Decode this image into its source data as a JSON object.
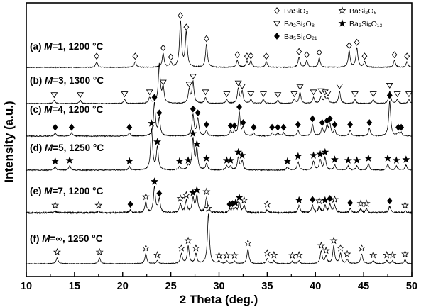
{
  "chart_data": {
    "type": "line",
    "xlabel": "2 Theta (deg.)",
    "ylabel": "Intensity (a.u.)",
    "xlim": [
      10,
      50
    ],
    "x_ticks": [
      "10",
      "15",
      "20",
      "25",
      "30",
      "35",
      "40",
      "45",
      "50"
    ],
    "grid": false,
    "legend": {
      "placement": "top-right",
      "entries": [
        {
          "label": "BaSiO₃",
          "marker": "diamond-open"
        },
        {
          "label": "BaSi₂O₅",
          "marker": "star-open"
        },
        {
          "label": "Ba₂Si₃O₈",
          "marker": "triangle-open"
        },
        {
          "label": "Ba₃Si₅O₁₃",
          "marker": "star-filled"
        },
        {
          "label": "Ba₅Si₈O₂₁",
          "marker": "diamond-filled"
        }
      ]
    },
    "series": [
      {
        "label": "(a) M=1, 1200 °C",
        "peaks": [
          {
            "x": 17.3,
            "h": 0.12,
            "m": "diamond-open"
          },
          {
            "x": 21.3,
            "h": 0.12,
            "m": "diamond-open"
          },
          {
            "x": 24.2,
            "h": 0.3,
            "m": "diamond-open"
          },
          {
            "x": 25.0,
            "h": 0.1,
            "m": "diamond-open"
          },
          {
            "x": 26.0,
            "h": 1.0,
            "m": "diamond-open"
          },
          {
            "x": 26.6,
            "h": 0.75,
            "m": "diamond-open"
          },
          {
            "x": 28.7,
            "h": 0.5,
            "m": "diamond-open"
          },
          {
            "x": 31.9,
            "h": 0.15,
            "m": "diamond-open"
          },
          {
            "x": 32.9,
            "h": 0.12,
            "m": "diamond-open"
          },
          {
            "x": 33.3,
            "h": 0.13,
            "m": "diamond-open"
          },
          {
            "x": 34.9,
            "h": 0.12,
            "m": "diamond-open"
          },
          {
            "x": 38.3,
            "h": 0.22,
            "m": "diamond-open"
          },
          {
            "x": 39.1,
            "h": 0.15,
            "m": "diamond-open"
          },
          {
            "x": 40.4,
            "h": 0.2,
            "m": "diamond-open"
          },
          {
            "x": 43.5,
            "h": 0.35,
            "m": "diamond-open"
          },
          {
            "x": 44.3,
            "h": 0.42,
            "m": "diamond-open"
          },
          {
            "x": 45.1,
            "h": 0.12,
            "m": "diamond-open"
          },
          {
            "x": 48.2,
            "h": 0.15,
            "m": "diamond-open"
          },
          {
            "x": 49.5,
            "h": 0.12,
            "m": "diamond-open"
          }
        ]
      },
      {
        "label": "(b) M=3, 1300 °C",
        "peaks": [
          {
            "x": 12.9,
            "h": 0.08,
            "m": "triangle-open"
          },
          {
            "x": 15.6,
            "h": 0.08,
            "m": "triangle-open"
          },
          {
            "x": 20.2,
            "h": 0.1,
            "m": "triangle-open"
          },
          {
            "x": 22.8,
            "h": 0.15,
            "m": "triangle-open"
          },
          {
            "x": 23.8,
            "h": 1.0,
            "m": ""
          },
          {
            "x": 24.2,
            "h": 0.4,
            "m": "triangle-open"
          },
          {
            "x": 26.9,
            "h": 0.35,
            "m": "triangle-open"
          },
          {
            "x": 27.3,
            "h": 0.55,
            "m": "triangle-open"
          },
          {
            "x": 28.6,
            "h": 0.15,
            "m": "triangle-open"
          },
          {
            "x": 30.8,
            "h": 0.1,
            "m": "triangle-open"
          },
          {
            "x": 32.0,
            "h": 0.38,
            "m": "triangle-open"
          },
          {
            "x": 32.4,
            "h": 0.3,
            "m": "triangle-open"
          },
          {
            "x": 33.3,
            "h": 0.1,
            "m": "triangle-open"
          },
          {
            "x": 34.6,
            "h": 0.1,
            "m": "triangle-open"
          },
          {
            "x": 36.1,
            "h": 0.08,
            "m": "triangle-open"
          },
          {
            "x": 37.8,
            "h": 0.1,
            "m": "triangle-open"
          },
          {
            "x": 38.4,
            "h": 0.28,
            "m": "triangle-open"
          },
          {
            "x": 39.8,
            "h": 0.15,
            "m": "triangle-open"
          },
          {
            "x": 40.6,
            "h": 0.18,
            "m": "triangle-open"
          },
          {
            "x": 41.0,
            "h": 0.15,
            "m": "triangle-open"
          },
          {
            "x": 41.3,
            "h": 0.12,
            "m": "triangle-open"
          },
          {
            "x": 42.5,
            "h": 0.3,
            "m": "triangle-open"
          },
          {
            "x": 44.1,
            "h": 0.1,
            "m": "triangle-open"
          },
          {
            "x": 46.0,
            "h": 0.1,
            "m": "triangle-open"
          },
          {
            "x": 47.7,
            "h": 0.32,
            "m": "triangle-open"
          },
          {
            "x": 48.5,
            "h": 0.1,
            "m": "triangle-open"
          },
          {
            "x": 49.7,
            "h": 0.1,
            "m": "triangle-open"
          }
        ]
      },
      {
        "label": "(c) M=4, 1200 °C",
        "peaks": [
          {
            "x": 13.0,
            "h": 0.08,
            "m": "diamond-filled"
          },
          {
            "x": 14.7,
            "h": 0.08,
            "m": "diamond-filled"
          },
          {
            "x": 20.7,
            "h": 0.08,
            "m": "diamond-filled"
          },
          {
            "x": 23.3,
            "h": 0.85,
            "m": "diamond-filled"
          },
          {
            "x": 23.8,
            "h": 0.45,
            "m": "diamond-filled"
          },
          {
            "x": 27.3,
            "h": 0.55,
            "m": "diamond-filled"
          },
          {
            "x": 27.8,
            "h": 0.45,
            "m": "diamond-filled"
          },
          {
            "x": 28.7,
            "h": 0.15,
            "m": "diamond-filled"
          },
          {
            "x": 31.2,
            "h": 0.12,
            "m": "diamond-filled"
          },
          {
            "x": 31.6,
            "h": 0.12,
            "m": "diamond-filled"
          },
          {
            "x": 32.1,
            "h": 0.6,
            "m": "diamond-filled"
          },
          {
            "x": 32.5,
            "h": 0.2,
            "m": "diamond-filled"
          },
          {
            "x": 33.6,
            "h": 0.08,
            "m": "diamond-filled"
          },
          {
            "x": 35.5,
            "h": 0.08,
            "m": "diamond-filled"
          },
          {
            "x": 36.1,
            "h": 0.08,
            "m": "diamond-filled"
          },
          {
            "x": 36.7,
            "h": 0.08,
            "m": "diamond-filled"
          },
          {
            "x": 38.2,
            "h": 0.15,
            "m": "diamond-filled"
          },
          {
            "x": 39.7,
            "h": 0.3,
            "m": "diamond-filled"
          },
          {
            "x": 40.7,
            "h": 0.2,
            "m": "diamond-filled"
          },
          {
            "x": 41.2,
            "h": 0.25,
            "m": "diamond-filled"
          },
          {
            "x": 41.5,
            "h": 0.3,
            "m": "diamond-filled"
          },
          {
            "x": 42.0,
            "h": 0.15,
            "m": "diamond-filled"
          },
          {
            "x": 43.6,
            "h": 0.15,
            "m": "diamond-filled"
          },
          {
            "x": 45.6,
            "h": 0.2,
            "m": "diamond-filled"
          },
          {
            "x": 47.7,
            "h": 0.9,
            "m": "diamond-filled"
          },
          {
            "x": 48.6,
            "h": 0.08,
            "m": "diamond-filled"
          },
          {
            "x": 48.9,
            "h": 0.08,
            "m": "diamond-filled"
          }
        ]
      },
      {
        "label": "(d) M=5, 1250 °C",
        "peaks": [
          {
            "x": 13.0,
            "h": 0.08,
            "m": "star-filled"
          },
          {
            "x": 14.5,
            "h": 0.1,
            "m": "star-filled"
          },
          {
            "x": 20.7,
            "h": 0.08,
            "m": "star-filled"
          },
          {
            "x": 23.0,
            "h": 1.0,
            "m": "star-filled"
          },
          {
            "x": 23.6,
            "h": 0.55,
            "m": "star-filled"
          },
          {
            "x": 25.9,
            "h": 0.08,
            "m": "star-filled"
          },
          {
            "x": 26.8,
            "h": 0.1,
            "m": "star-filled"
          },
          {
            "x": 27.3,
            "h": 0.75,
            "m": "star-filled"
          },
          {
            "x": 27.7,
            "h": 0.5,
            "m": "star-filled"
          },
          {
            "x": 28.7,
            "h": 0.15,
            "m": "star-filled"
          },
          {
            "x": 30.8,
            "h": 0.1,
            "m": "star-filled"
          },
          {
            "x": 31.2,
            "h": 0.1,
            "m": "star-filled"
          },
          {
            "x": 32.0,
            "h": 0.3,
            "m": "star-filled"
          },
          {
            "x": 32.4,
            "h": 0.22,
            "m": "star-filled"
          },
          {
            "x": 37.1,
            "h": 0.08,
            "m": "star-filled"
          },
          {
            "x": 38.2,
            "h": 0.2,
            "m": "star-filled"
          },
          {
            "x": 39.8,
            "h": 0.22,
            "m": "star-filled"
          },
          {
            "x": 40.5,
            "h": 0.25,
            "m": "star-filled"
          },
          {
            "x": 41.0,
            "h": 0.3,
            "m": "star-filled"
          },
          {
            "x": 42.0,
            "h": 0.12,
            "m": "star-filled"
          },
          {
            "x": 43.4,
            "h": 0.1,
            "m": "star-filled"
          },
          {
            "x": 44.3,
            "h": 0.1,
            "m": "star-filled"
          },
          {
            "x": 45.5,
            "h": 0.15,
            "m": "star-filled"
          },
          {
            "x": 47.5,
            "h": 0.15,
            "m": "star-filled"
          },
          {
            "x": 48.4,
            "h": 0.1,
            "m": "star-filled"
          },
          {
            "x": 49.4,
            "h": 0.12,
            "m": "star-filled"
          }
        ]
      },
      {
        "label": "(e) M=7, 1200 °C",
        "peaks": [
          {
            "x": 13.0,
            "h": 0.05,
            "m": "star-open"
          },
          {
            "x": 17.5,
            "h": 0.05,
            "m": "star-open"
          },
          {
            "x": 20.8,
            "h": 0.08,
            "m": "diamond-filled"
          },
          {
            "x": 22.4,
            "h": 0.3,
            "m": "star-open"
          },
          {
            "x": 23.3,
            "h": 0.75,
            "m": "star-filled"
          },
          {
            "x": 23.8,
            "h": 0.4,
            "m": "diamond-filled"
          },
          {
            "x": 26.0,
            "h": 0.25,
            "m": "star-open"
          },
          {
            "x": 26.6,
            "h": 0.35,
            "m": "star-open"
          },
          {
            "x": 27.3,
            "h": 0.42,
            "m": "star-filled"
          },
          {
            "x": 27.7,
            "h": 0.5,
            "m": "star-filled"
          },
          {
            "x": 28.7,
            "h": 0.45,
            "m": "star-open"
          },
          {
            "x": 31.1,
            "h": 0.08,
            "m": "diamond-filled"
          },
          {
            "x": 31.4,
            "h": 0.1,
            "m": "diamond-filled"
          },
          {
            "x": 31.7,
            "h": 0.12,
            "m": "star-filled"
          },
          {
            "x": 32.1,
            "h": 0.28,
            "m": "star-filled"
          },
          {
            "x": 32.6,
            "h": 0.2,
            "m": "star-open"
          },
          {
            "x": 35.0,
            "h": 0.08,
            "m": "star-open"
          },
          {
            "x": 38.3,
            "h": 0.2,
            "m": "star-filled"
          },
          {
            "x": 39.7,
            "h": 0.22,
            "m": "diamond-filled"
          },
          {
            "x": 40.4,
            "h": 0.18,
            "m": "star-open"
          },
          {
            "x": 41.0,
            "h": 0.2,
            "m": "star-filled"
          },
          {
            "x": 41.5,
            "h": 0.25,
            "m": "diamond-filled"
          },
          {
            "x": 42.0,
            "h": 0.22,
            "m": "star-open"
          },
          {
            "x": 43.6,
            "h": 0.12,
            "m": "diamond-filled"
          },
          {
            "x": 44.7,
            "h": 0.1,
            "m": "star-open"
          },
          {
            "x": 45.3,
            "h": 0.1,
            "m": "star-open"
          },
          {
            "x": 47.7,
            "h": 0.18,
            "m": "diamond-filled"
          },
          {
            "x": 49.3,
            "h": 0.05,
            "m": "star-open"
          }
        ]
      },
      {
        "label": "(f) M=∞, 1250 °C",
        "peaks": [
          {
            "x": 13.2,
            "h": 0.12,
            "m": "star-open"
          },
          {
            "x": 17.6,
            "h": 0.12,
            "m": "star-open"
          },
          {
            "x": 22.4,
            "h": 0.2,
            "m": "star-open"
          },
          {
            "x": 23.6,
            "h": 0.06,
            "m": "star-open"
          },
          {
            "x": 26.1,
            "h": 0.2,
            "m": "star-open"
          },
          {
            "x": 26.8,
            "h": 0.35,
            "m": "star-open"
          },
          {
            "x": 27.6,
            "h": 0.2,
            "m": "star-open"
          },
          {
            "x": 28.9,
            "h": 1.0,
            "m": "star-open"
          },
          {
            "x": 30.0,
            "h": 0.05,
            "m": "star-open"
          },
          {
            "x": 30.8,
            "h": 0.05,
            "m": "star-open"
          },
          {
            "x": 31.6,
            "h": 0.05,
            "m": "star-open"
          },
          {
            "x": 33.0,
            "h": 0.3,
            "m": "star-open"
          },
          {
            "x": 35.0,
            "h": 0.1,
            "m": "star-open"
          },
          {
            "x": 35.7,
            "h": 0.06,
            "m": "star-open"
          },
          {
            "x": 37.6,
            "h": 0.05,
            "m": "star-open"
          },
          {
            "x": 38.3,
            "h": 0.06,
            "m": "star-open"
          },
          {
            "x": 40.6,
            "h": 0.25,
            "m": "star-open"
          },
          {
            "x": 41.1,
            "h": 0.15,
            "m": "star-open"
          },
          {
            "x": 41.9,
            "h": 0.35,
            "m": "star-open"
          },
          {
            "x": 42.6,
            "h": 0.2,
            "m": "star-open"
          },
          {
            "x": 43.3,
            "h": 0.08,
            "m": "star-open"
          },
          {
            "x": 44.8,
            "h": 0.2,
            "m": "star-open"
          },
          {
            "x": 46.0,
            "h": 0.06,
            "m": "star-open"
          },
          {
            "x": 47.4,
            "h": 0.06,
            "m": "star-open"
          },
          {
            "x": 48.0,
            "h": 0.06,
            "m": "star-open"
          },
          {
            "x": 49.3,
            "h": 0.08,
            "m": "star-open"
          }
        ]
      }
    ]
  }
}
